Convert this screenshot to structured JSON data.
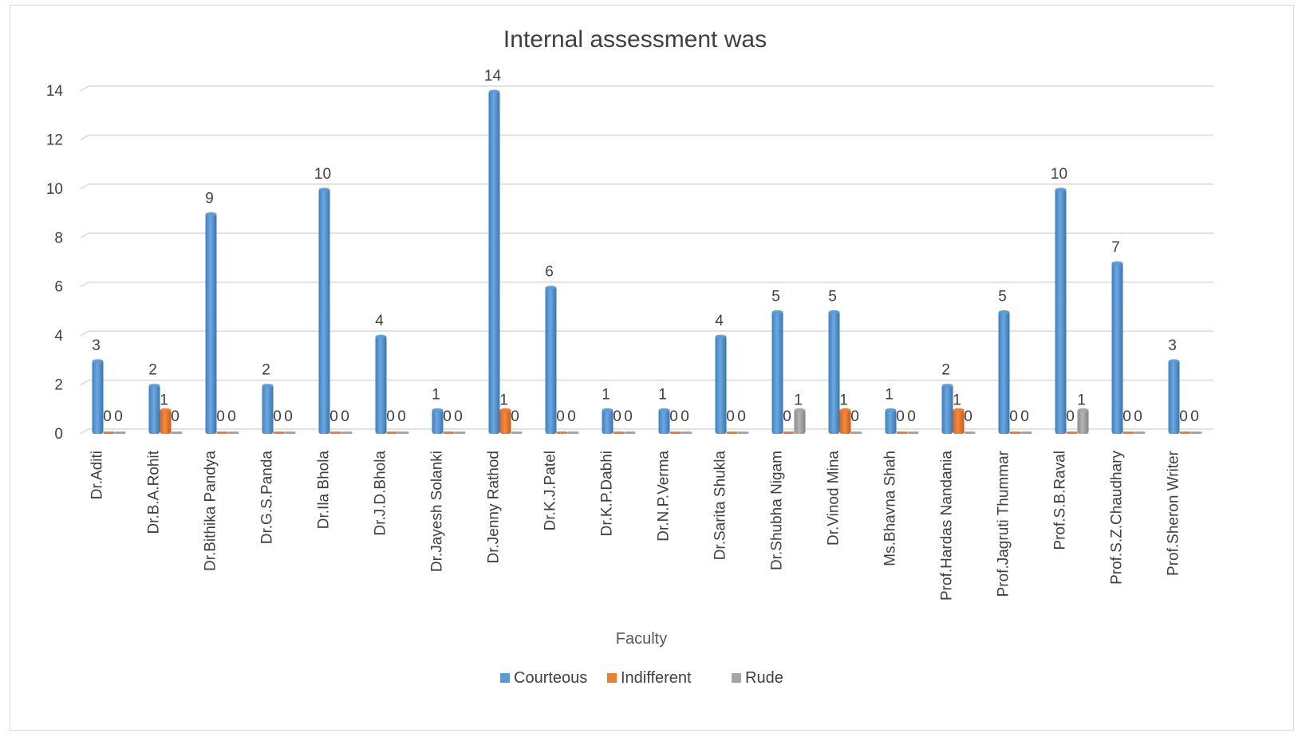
{
  "chart_data": {
    "type": "bar",
    "title": "Internal assessment was",
    "xlabel": "Faculty",
    "ylabel": "",
    "ylim": [
      0,
      14
    ],
    "yticks": [
      0,
      2,
      4,
      6,
      8,
      10,
      12,
      14
    ],
    "grid": true,
    "legend_position": "bottom",
    "categories": [
      "Dr.Aditi",
      "Dr.B.A.Rohit",
      "Dr.Bithika Pandya",
      "Dr.G.S.Panda",
      "Dr.Ila Bhola",
      "Dr.J.D.Bhola",
      "Dr.Jayesh Solanki",
      "Dr.Jenny Rathod",
      "Dr.K.J.Patel",
      "Dr.K.P.Dabhi",
      "Dr.N.P.Verma",
      "Dr.Sarita Shukla",
      "Dr.Shubha Nigam",
      "Dr.Vinod Mina",
      "Ms.Bhavna Shah",
      "Prof.Hardas Nandania",
      "Prof.Jagruti Thummar",
      "Prof.S.B.Raval",
      "Prof.S.Z.Chaudhary",
      "Prof.Sheron Writer"
    ],
    "series": [
      {
        "name": "Courteous",
        "color": "#5b9bd5",
        "values": [
          3,
          2,
          9,
          2,
          10,
          4,
          1,
          14,
          6,
          1,
          1,
          4,
          5,
          5,
          1,
          2,
          5,
          10,
          7,
          3
        ]
      },
      {
        "name": "Indifferent",
        "color": "#ed7d31",
        "values": [
          0,
          1,
          0,
          0,
          0,
          0,
          0,
          1,
          0,
          0,
          0,
          0,
          0,
          1,
          0,
          1,
          0,
          0,
          0,
          0
        ]
      },
      {
        "name": "Rude",
        "color": "#a5a5a5",
        "values": [
          0,
          0,
          0,
          0,
          0,
          0,
          0,
          0,
          0,
          0,
          0,
          0,
          1,
          0,
          0,
          0,
          0,
          1,
          0,
          0
        ]
      }
    ]
  }
}
